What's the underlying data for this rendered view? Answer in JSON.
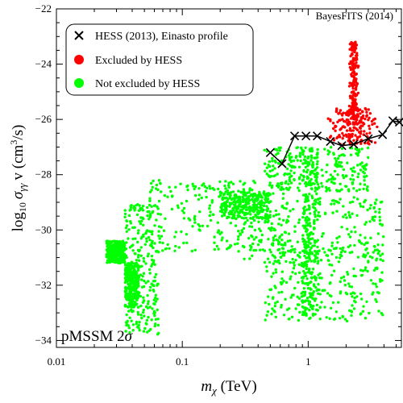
{
  "chart_data": {
    "type": "scatter",
    "title": "",
    "watermark": "BayesFITS (2014)",
    "annotation_main": "pMSSM 2",
    "annotation_symbol": "σ",
    "xlabel_symbol": "m",
    "xlabel_sub": "χ",
    "xlabel_unit": " (TeV)",
    "ylabel_prefix": "log",
    "ylabel_base": "10",
    "ylabel_sigma": "σ",
    "ylabel_sub": "γγ",
    "ylabel_v": "v",
    "ylabel_unit_open": " (cm",
    "ylabel_exp": "3",
    "ylabel_unit_close": "/s)",
    "xscale": "log",
    "xlim": [
      0.01,
      5.5
    ],
    "ylim": [
      -34.25,
      -22
    ],
    "x_ticks": [
      0.01,
      0.1,
      1
    ],
    "x_tick_labels": [
      "0.01",
      "0.1",
      "1"
    ],
    "y_ticks": [
      -34,
      -32,
      -30,
      -28,
      -26,
      -24,
      -22
    ],
    "y_tick_labels": [
      "−34",
      "−32",
      "−30",
      "−28",
      "−26",
      "−24",
      "−22"
    ],
    "legend_position": "top-left",
    "legend": [
      {
        "label": "HESS (2013), Einasto profile",
        "marker": "x",
        "color": "#000000"
      },
      {
        "label": "Excluded by HESS",
        "marker": "circle",
        "color": "#ff0000"
      },
      {
        "label": "Not excluded by HESS",
        "marker": "circle",
        "color": "#00ff00"
      }
    ],
    "series": [
      {
        "name": "HESS (2013), Einasto profile",
        "kind": "line-with-x-markers",
        "color": "#000000",
        "points": [
          [
            0.5,
            -27.2
          ],
          [
            0.62,
            -27.6
          ],
          [
            0.78,
            -26.6
          ],
          [
            0.96,
            -26.6
          ],
          [
            1.18,
            -26.6
          ],
          [
            1.5,
            -26.8
          ],
          [
            1.85,
            -26.95
          ],
          [
            2.3,
            -26.9
          ],
          [
            3.0,
            -26.7
          ],
          [
            3.9,
            -26.55
          ],
          [
            4.7,
            -26.05
          ],
          [
            5.3,
            -26.1
          ]
        ]
      },
      {
        "name": "Excluded by HESS",
        "kind": "scatter-regions",
        "color": "#ff0000",
        "regions": [
          {
            "x_center": 2.3,
            "x_log_halfwidth": 0.04,
            "y_range": [
              -26.0,
              -23.2
            ]
          },
          {
            "x_center": 2.3,
            "x_log_halfwidth": 0.22,
            "y_range": [
              -26.9,
              -25.6
            ]
          }
        ]
      },
      {
        "name": "Not excluded by HESS",
        "kind": "scatter-regions",
        "color": "#00ff00",
        "regions": [
          {
            "x_range": [
              0.035,
              0.065
            ],
            "y_range": [
              -33.8,
              -29.0
            ]
          },
          {
            "x_range": [
              0.055,
              0.7
            ],
            "y_range": [
              -30.8,
              -28.2
            ]
          },
          {
            "x_range": [
              0.2,
              0.5
            ],
            "y_range": [
              -29.6,
              -28.6
            ]
          },
          {
            "x_range": [
              0.45,
              3.0
            ],
            "y_range": [
              -28.6,
              -27.0
            ]
          },
          {
            "x_range": [
              0.3,
              4.0
            ],
            "y_range": [
              -31.2,
              -28.8
            ]
          },
          {
            "x_range": [
              0.45,
              4.0
            ],
            "y_range": [
              -33.3,
              -30.5
            ]
          },
          {
            "x_range": [
              0.9,
              1.2
            ],
            "y_range": [
              -33.2,
              -27.0
            ]
          },
          {
            "x_range": [
              0.035,
              0.045
            ],
            "y_range": [
              -32.8,
              -31.2
            ]
          },
          {
            "x_range": [
              0.025,
              0.035
            ],
            "y_range": [
              -31.2,
              -30.4
            ]
          }
        ]
      }
    ]
  }
}
